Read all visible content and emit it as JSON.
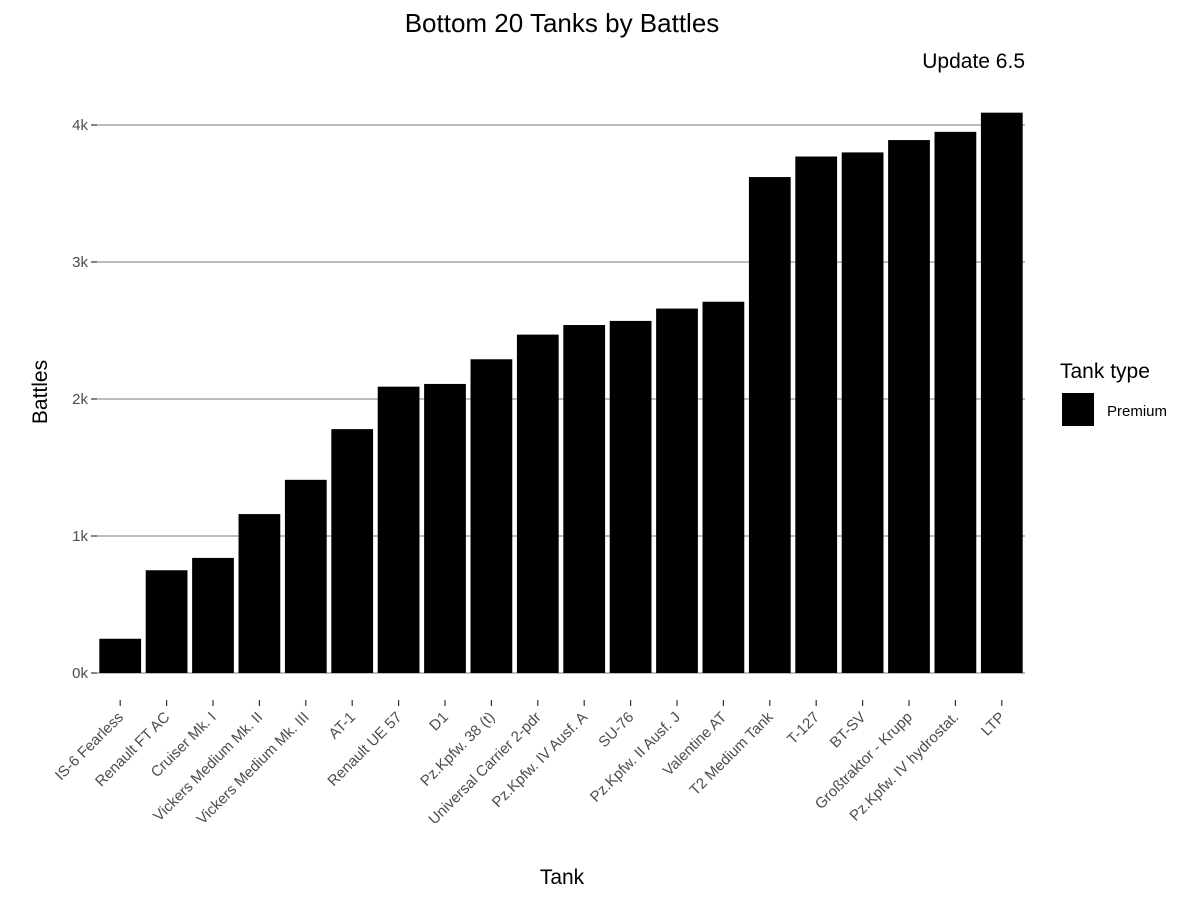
{
  "chart_data": {
    "type": "bar",
    "title": "Bottom 20 Tanks by Battles",
    "subtitle": "Update 6.5",
    "xlabel": "Tank",
    "ylabel": "Battles",
    "ylim": [
      0,
      4100
    ],
    "yticks": [
      0,
      1000,
      2000,
      3000,
      4000
    ],
    "ytick_labels": [
      "0k",
      "1k",
      "2k",
      "3k",
      "4k"
    ],
    "grid": true,
    "legend_position": "right",
    "legend_title": "Tank type",
    "bar_color": "#000000",
    "categories": [
      "IS-6 Fearless",
      "Renault FT AC",
      "Cruiser Mk. I",
      "Vickers Medium Mk. II",
      "Vickers Medium Mk. III",
      "AT-1",
      "Renault UE 57",
      "D1",
      "Pz.Kpfw. 38 (t)",
      "Universal Carrier 2-pdr",
      "Pz.Kpfw. IV Ausf. A",
      "SU-76",
      "Pz.Kpfw. II Ausf. J",
      "Valentine AT",
      "T2 Medium Tank",
      "T-127",
      "BT-SV",
      "Großtraktor - Krupp",
      "Pz.Kpfw. IV hydrostat.",
      "LTP"
    ],
    "series": [
      {
        "name": "Premium",
        "values": [
          250,
          750,
          840,
          1160,
          1410,
          1780,
          2090,
          2110,
          2290,
          2470,
          2540,
          2570,
          2660,
          2710,
          3620,
          3770,
          3800,
          3890,
          3950,
          4090
        ]
      }
    ]
  }
}
